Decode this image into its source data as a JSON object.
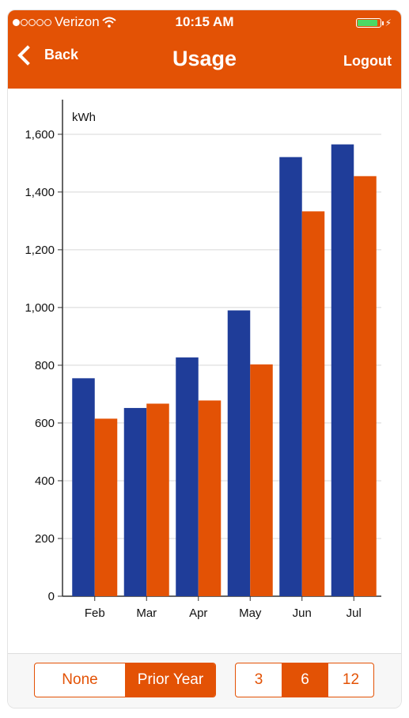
{
  "status_bar": {
    "carrier": "Verizon",
    "time": "10:15 AM",
    "battery_percent": 90
  },
  "nav": {
    "back_label": "Back",
    "title": "Usage",
    "logout_label": "Logout"
  },
  "chart_data": {
    "type": "bar",
    "unit_label": "kWh",
    "categories": [
      "Feb",
      "Mar",
      "Apr",
      "May",
      "Jun",
      "Jul"
    ],
    "series": [
      {
        "values": [
          755,
          652,
          827,
          990,
          1521,
          1565
        ],
        "color": "#1f3d99"
      },
      {
        "values": [
          615,
          667,
          678,
          803,
          1333,
          1455
        ],
        "color": "#e35205"
      }
    ],
    "ylim": [
      0,
      1720
    ],
    "yticks": [
      0,
      200,
      400,
      600,
      800,
      1000,
      1200,
      1400,
      1600
    ],
    "ytick_labels": [
      "0",
      "200",
      "400",
      "600",
      "800",
      "1,000",
      "1,200",
      "1,400",
      "1,600"
    ],
    "grid": true
  },
  "footer": {
    "compare": {
      "options": [
        "None",
        "Prior Year"
      ],
      "selected": "Prior Year"
    },
    "months": {
      "options": [
        "3",
        "6",
        "12"
      ],
      "selected": "6"
    }
  },
  "colors": {
    "accent": "#e35205",
    "series_current": "#1f3d99",
    "battery": "#4cd964"
  },
  "icons": {
    "signal": "signal-dots-icon",
    "wifi": "wifi-icon",
    "battery": "battery-icon",
    "back": "chevron-left-icon"
  }
}
